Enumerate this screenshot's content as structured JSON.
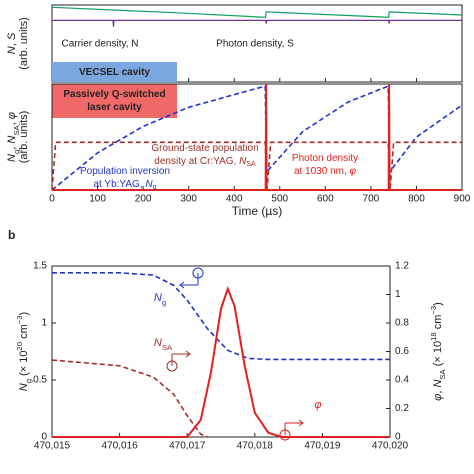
{
  "panel_label": "b",
  "chart_data": [
    {
      "type": "line",
      "ylabel": [
        [
          {
            "i": "N"
          },
          ", ",
          {
            "i": "S"
          }
        ],
        [
          "(arb. units)"
        ]
      ],
      "xlim": [
        0,
        900
      ],
      "ylim": [
        0,
        1
      ],
      "series": [
        {
          "name": "Carrier density, N",
          "color": "#7030a0",
          "dash": false,
          "x": [
            0,
            134,
            135,
            136,
            469,
            470,
            471,
            739,
            740,
            741,
            900
          ],
          "values": [
            0.8,
            0.8,
            0.72,
            0.8,
            0.8,
            0.76,
            0.8,
            0.8,
            0.76,
            0.8,
            0.8
          ]
        },
        {
          "name": "Photon density, S",
          "color": "#10a060",
          "dash": false,
          "x": [
            0,
            270,
            469,
            470,
            739,
            740,
            900
          ],
          "values": [
            0.97,
            0.9,
            0.84,
            0.91,
            0.84,
            0.91,
            0.87
          ]
        }
      ],
      "annotations": [
        {
          "text": [
            [
              "VECSEL cavity"
            ]
          ],
          "box": "#7ba7e0"
        },
        {
          "text": [
            [
              "Passively Q-switched"
            ],
            [
              "laser cavity"
            ]
          ],
          "box": "#f06868"
        }
      ]
    },
    {
      "type": "line",
      "ylabel": [
        [
          {
            "i": "N"
          },
          {
            "sub": "g"
          },
          ", ",
          {
            "i": "N"
          },
          {
            "sub": "SA"
          },
          ", ",
          {
            "i": "φ"
          }
        ],
        [
          "(arb. units)"
        ]
      ],
      "xlabel": "Time (µs)",
      "xlim": [
        0,
        900
      ],
      "ylim": [
        0,
        1
      ],
      "xticks": [
        0,
        100,
        200,
        300,
        400,
        500,
        600,
        700,
        800,
        900
      ],
      "series": [
        {
          "name": "Population inversion at Yb:YAG",
          "color": "#2233cc",
          "dash": true,
          "x": [
            0,
            100,
            200,
            300,
            400,
            468,
            471,
            550,
            650,
            738,
            741,
            800,
            900
          ],
          "values": [
            0,
            0.35,
            0.6,
            0.78,
            0.9,
            0.98,
            0.17,
            0.55,
            0.83,
            0.98,
            0.17,
            0.5,
            0.8
          ]
        },
        {
          "name": "Ground-state population density at Cr:YAG",
          "color": "#a0302a",
          "dash": true,
          "x": [
            0,
            8,
            468,
            472,
            480,
            738,
            742,
            750,
            900
          ],
          "values": [
            0,
            0.45,
            0.45,
            0,
            0.45,
            0.45,
            0,
            0.45,
            0.45
          ]
        },
        {
          "name": "Photon density at 1030 nm",
          "color": "#dd2222",
          "dash": false,
          "x": [
            0,
            469,
            470,
            471,
            739,
            740,
            741,
            900
          ],
          "values": [
            0,
            0,
            1,
            0,
            0,
            1,
            0,
            0
          ]
        }
      ],
      "annotations": [
        {
          "text": [
            [
              "Ground-state population"
            ],
            [
              "density at Cr:YAG, ",
              {
                "i": "N"
              },
              {
                "sub": "SA"
              }
            ]
          ],
          "color": "#a0302a"
        },
        {
          "text": [
            [
              "Population inversion"
            ],
            [
              "at Yb:YAG, ",
              {
                "i": "N"
              },
              {
                "sub": "g"
              }
            ]
          ],
          "color": "#2233cc"
        },
        {
          "text": [
            [
              "Photon density"
            ],
            [
              "at 1030 nm, ",
              {
                "i": "φ"
              }
            ]
          ],
          "color": "#dd2222"
        }
      ]
    },
    {
      "type": "line",
      "xlim": [
        470015,
        470020
      ],
      "xticks": [
        {
          "value": 470015,
          "label": "470,015"
        },
        {
          "value": 470016,
          "label": "470,016"
        },
        {
          "value": 470017,
          "label": "470,017"
        },
        {
          "value": 470018,
          "label": "470,018"
        },
        {
          "value": 470019,
          "label": "470,019"
        },
        {
          "value": 470020,
          "label": "470,020"
        }
      ],
      "ylim": [
        0,
        1.5
      ],
      "yticks": [
        0,
        0.5,
        1,
        1.5
      ],
      "y2lim": [
        0,
        1.2
      ],
      "y2ticks": [
        0,
        0.2,
        0.4,
        0.6,
        0.8,
        1,
        1.2
      ],
      "ylabel": [
        [
          {
            "i": "N"
          },
          {
            "sub": "g"
          },
          " (× 10",
          {
            "sup": "20"
          },
          " cm",
          {
            "sup": "−3"
          },
          ")"
        ]
      ],
      "y2label": [
        [
          {
            "i": "φ"
          },
          ", ",
          {
            "i": "N"
          },
          {
            "sub": "SA"
          },
          " (× 10",
          {
            "sup": "18"
          },
          " cm",
          {
            "sup": "−3"
          },
          ")"
        ]
      ],
      "series": [
        {
          "name": "Ng",
          "color": "#2233cc",
          "dash": true,
          "x": [
            470015,
            470016,
            470016.5,
            470016.8,
            470017,
            470017.3,
            470017.6,
            470017.9,
            470018.2,
            470020
          ],
          "values": [
            1.44,
            1.44,
            1.42,
            1.33,
            1.2,
            0.95,
            0.76,
            0.69,
            0.68,
            0.68
          ]
        },
        {
          "name": "NSA",
          "color": "#a0302a",
          "dash": true,
          "axis": "y2",
          "x": [
            470015,
            470016,
            470016.5,
            470016.8,
            470017,
            470017.2,
            470017.3
          ],
          "values": [
            0.54,
            0.5,
            0.42,
            0.3,
            0.15,
            0.02,
            0
          ]
        },
        {
          "name": "phi",
          "color": "#dd2222",
          "dash": false,
          "axis": "y2",
          "x": [
            470015,
            470017,
            470017.2,
            470017.35,
            470017.5,
            470017.6,
            470017.7,
            470017.85,
            470018,
            470018.2,
            470018.4,
            470020
          ],
          "values": [
            0,
            0,
            0.12,
            0.45,
            0.9,
            1.04,
            0.92,
            0.5,
            0.17,
            0.03,
            0,
            0
          ]
        }
      ],
      "annotations": [
        {
          "text": [
            [
              {
                "i": "N"
              },
              {
                "sub": "g"
              }
            ]
          ],
          "color": "#2233cc"
        },
        {
          "text": [
            [
              {
                "i": "N"
              },
              {
                "sub": "SA"
              }
            ]
          ],
          "color": "#a0302a"
        },
        {
          "text": [
            [
              {
                "i": "φ"
              }
            ]
          ],
          "color": "#dd2222"
        }
      ]
    }
  ]
}
